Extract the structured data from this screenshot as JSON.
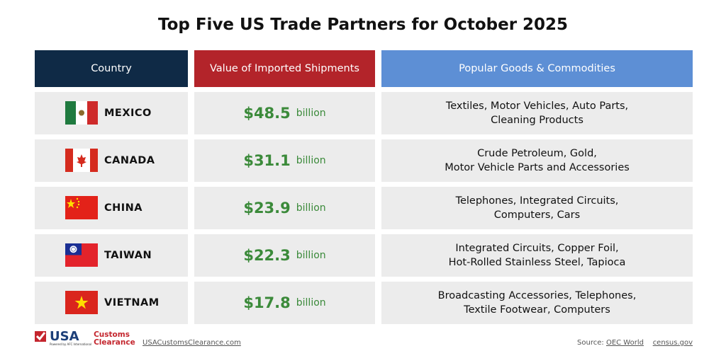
{
  "title": "Top Five US Trade Partners for October 2025",
  "headers": [
    "Country",
    "Value of Imported Shipments",
    "Popular Goods & Commodities"
  ],
  "header_colors": [
    "#0f2a46",
    "#b3242a",
    "#5d8fd5"
  ],
  "rows": [
    {
      "country": "MEXICO",
      "value": "$48.5",
      "unit": "billion",
      "goods1": "Textiles, Motor Vehicles, Auto Parts,",
      "goods2": "Cleaning Products"
    },
    {
      "country": "CANADA",
      "value": "$31.1",
      "unit": "billion",
      "goods1": "Crude Petroleum, Gold,",
      "goods2": "Motor Vehicle Parts and Accessories"
    },
    {
      "country": "CHINA",
      "value": "$23.9",
      "unit": "billion",
      "goods1": "Telephones, Integrated Circuits,",
      "goods2": "Computers, Cars"
    },
    {
      "country": "TAIWAN",
      "value": "$22.3",
      "unit": "billion",
      "goods1": "Integrated Circuits, Copper Foil,",
      "goods2": "Hot-Rolled Stainless Steel, Tapioca"
    },
    {
      "country": "VIETNAM",
      "value": "$17.8",
      "unit": "billion",
      "goods1": "Broadcasting Accessories, Telephones,",
      "goods2": "Textile Footwear, Computers"
    }
  ],
  "footer": {
    "logo_usa": "USA",
    "logo_customs": "Customs",
    "logo_clearance": "Clearance",
    "logo_powered": "Powered by AFC International",
    "website": "USACustomsClearance.com",
    "source_label": "Source:",
    "source1": "OEC World",
    "source2": "census.gov"
  }
}
